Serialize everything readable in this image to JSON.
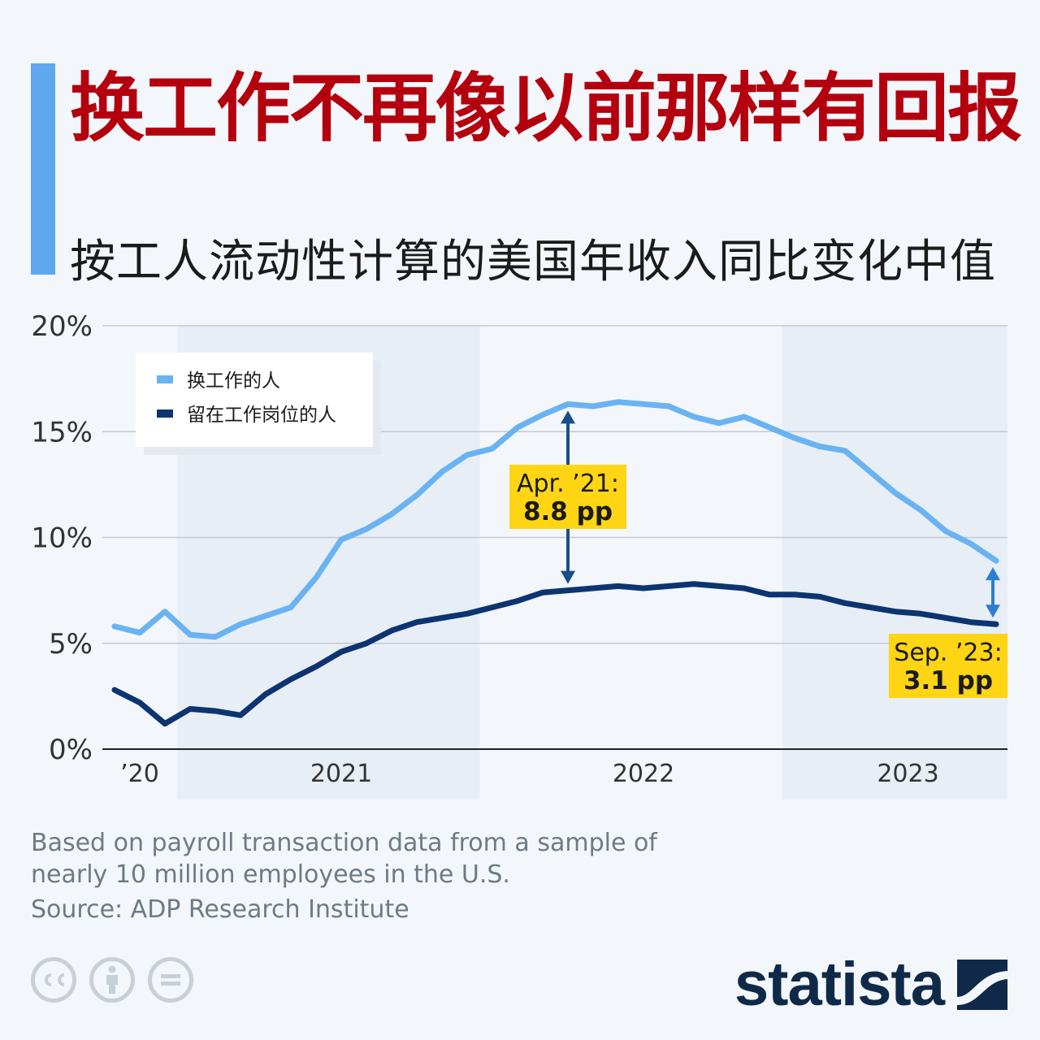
{
  "header": {
    "title": "换工作不再像以前那样有回报",
    "subtitle": "按工人流动性计算的美国年收入同比变化中值"
  },
  "colors": {
    "accent": "#5fa8f0",
    "title": "#b4000e",
    "job_changers": "#6ab3f2",
    "job_stayers": "#0b3470",
    "annotation_bg": "#ffd514",
    "band": "#e8eef6"
  },
  "chart_data": {
    "type": "line",
    "title": "按工人流动性计算的美国年收入同比变化中值",
    "xlabel": "",
    "ylabel": "",
    "ylim": [
      0,
      20
    ],
    "y_ticks": [
      0,
      5,
      10,
      15,
      20
    ],
    "y_tick_labels": [
      "0%",
      "5%",
      "10%",
      "15%",
      "20%"
    ],
    "x_tick_labels": [
      {
        "label": "’20",
        "index": 1
      },
      {
        "label": "2021",
        "index": 9
      },
      {
        "label": "2022",
        "index": 21
      },
      {
        "label": "2023",
        "index": 31.5
      }
    ],
    "year_bands": [
      {
        "start": 2.5,
        "end": 14.5
      },
      {
        "start": 26.5,
        "end": 35
      }
    ],
    "n_points": 36,
    "legend": {
      "position": "top-left"
    },
    "series": [
      {
        "name": "换工作的人",
        "values": [
          5.8,
          5.5,
          6.5,
          5.4,
          5.3,
          5.9,
          6.3,
          6.7,
          8.1,
          9.9,
          10.4,
          11.1,
          12.0,
          13.1,
          13.9,
          14.2,
          15.2,
          15.8,
          16.3,
          16.2,
          16.4,
          16.3,
          16.2,
          15.7,
          15.4,
          15.7,
          15.2,
          14.7,
          14.3,
          14.1,
          13.1,
          12.1,
          11.3,
          10.3,
          9.7,
          8.9
        ]
      },
      {
        "name": "留在工作岗位的人",
        "values": [
          2.8,
          2.2,
          1.2,
          1.9,
          1.8,
          1.6,
          2.6,
          3.3,
          3.9,
          4.6,
          5.0,
          5.6,
          6.0,
          6.2,
          6.4,
          6.7,
          7.0,
          7.4,
          7.5,
          7.6,
          7.7,
          7.6,
          7.7,
          7.8,
          7.7,
          7.6,
          7.3,
          7.3,
          7.2,
          6.9,
          6.7,
          6.5,
          6.4,
          6.2,
          6.0,
          5.9
        ]
      }
    ],
    "annotations": [
      {
        "label": "Apr. ’21:",
        "value": "8.8 pp",
        "index": 18
      },
      {
        "label": "Sep. ’23:",
        "value": "3.1 pp",
        "index": 35
      }
    ]
  },
  "footer": {
    "note": "Based on payroll transaction data from a sample of nearly 10 million employees in the U.S.",
    "source": "Source: ADP Research Institute",
    "brand": "statista",
    "licence_icons": [
      "cc-icon",
      "person-icon",
      "equals-icon"
    ]
  }
}
